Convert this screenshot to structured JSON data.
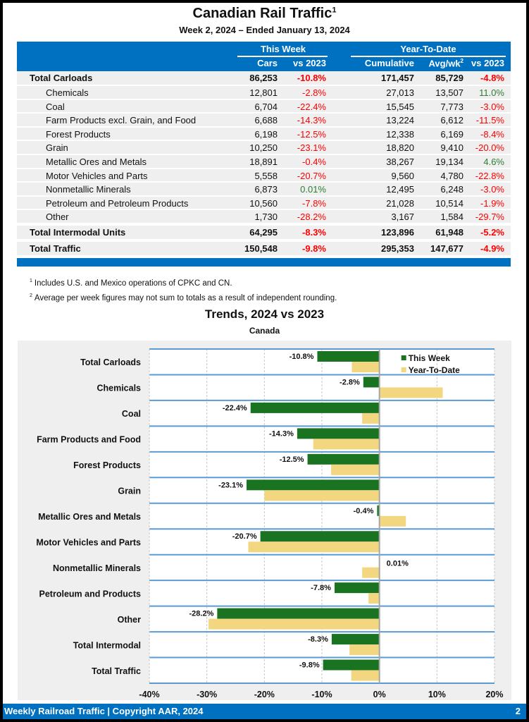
{
  "header": {
    "title": "Canadian Rail Traffic",
    "title_sup": "1",
    "subtitle": "Week 2, 2024 – Ended January 13, 2024"
  },
  "table": {
    "groups": [
      "This Week",
      "Year-To-Date"
    ],
    "columns": [
      "Cars",
      "vs 2023",
      "Cumulative",
      "Avg/wk",
      "vs 2023"
    ],
    "avg_sup": "2",
    "rows": [
      {
        "label": "Total Carloads",
        "type": "total",
        "cars": "86,253",
        "vs_week": "-10.8%",
        "cumulative": "171,457",
        "avg": "85,729",
        "vs_ytd": "-4.8%"
      },
      {
        "label": "Chemicals",
        "type": "sub",
        "cars": "12,801",
        "vs_week": "-2.8%",
        "cumulative": "27,013",
        "avg": "13,507",
        "vs_ytd": "11.0%"
      },
      {
        "label": "Coal",
        "type": "sub",
        "cars": "6,704",
        "vs_week": "-22.4%",
        "cumulative": "15,545",
        "avg": "7,773",
        "vs_ytd": "-3.0%"
      },
      {
        "label": "Farm Products excl. Grain, and Food",
        "type": "sub",
        "cars": "6,688",
        "vs_week": "-14.3%",
        "cumulative": "13,224",
        "avg": "6,612",
        "vs_ytd": "-11.5%"
      },
      {
        "label": "Forest Products",
        "type": "sub",
        "cars": "6,198",
        "vs_week": "-12.5%",
        "cumulative": "12,338",
        "avg": "6,169",
        "vs_ytd": "-8.4%"
      },
      {
        "label": "Grain",
        "type": "sub",
        "cars": "10,250",
        "vs_week": "-23.1%",
        "cumulative": "18,820",
        "avg": "9,410",
        "vs_ytd": "-20.0%"
      },
      {
        "label": "Metallic Ores and Metals",
        "type": "sub",
        "cars": "18,891",
        "vs_week": "-0.4%",
        "cumulative": "38,267",
        "avg": "19,134",
        "vs_ytd": "4.6%"
      },
      {
        "label": "Motor Vehicles and Parts",
        "type": "sub",
        "cars": "5,558",
        "vs_week": "-20.7%",
        "cumulative": "9,560",
        "avg": "4,780",
        "vs_ytd": "-22.8%"
      },
      {
        "label": "Nonmetallic Minerals",
        "type": "sub",
        "cars": "6,873",
        "vs_week": "0.01%",
        "cumulative": "12,495",
        "avg": "6,248",
        "vs_ytd": "-3.0%"
      },
      {
        "label": "Petroleum and Petroleum Products",
        "type": "sub",
        "cars": "10,560",
        "vs_week": "-7.8%",
        "cumulative": "21,028",
        "avg": "10,514",
        "vs_ytd": "-1.9%"
      },
      {
        "label": "Other",
        "type": "sub",
        "cars": "1,730",
        "vs_week": "-28.2%",
        "cumulative": "3,167",
        "avg": "1,584",
        "vs_ytd": "-29.7%"
      },
      {
        "label": "Total Intermodal Units",
        "type": "total",
        "cars": "64,295",
        "vs_week": "-8.3%",
        "cumulative": "123,896",
        "avg": "61,948",
        "vs_ytd": "-5.2%"
      },
      {
        "label": "Total Traffic",
        "type": "total",
        "cars": "150,548",
        "vs_week": "-9.8%",
        "cumulative": "295,353",
        "avg": "147,677",
        "vs_ytd": "-4.9%"
      }
    ]
  },
  "notes": [
    {
      "sup": "1",
      "text": "Includes U.S. and Mexico operations of CPKC and CN."
    },
    {
      "sup": "2",
      "text": "Average per week figures may not sum to totals as a result of independent rounding."
    }
  ],
  "colors": {
    "brand_blue": "#0070c0",
    "negative": "#ff0000",
    "positive": "#2e7d32",
    "this_week_bar": "#1a7321",
    "ytd_bar": "#f2d680"
  },
  "chart_data": {
    "type": "bar",
    "orientation": "horizontal",
    "title": "Trends, 2024 vs 2023",
    "subtitle": "Canada",
    "categories": [
      "Total Carloads",
      "Chemicals",
      "Coal",
      "Farm Products and Food",
      "Forest Products",
      "Grain",
      "Metallic Ores and Metals",
      "Motor Vehicles and Parts",
      "Nonmetallic Minerals",
      "Petroleum and Products",
      "Other",
      "Total Intermodal",
      "Total Traffic"
    ],
    "series": [
      {
        "name": "This Week",
        "values": [
          -10.8,
          -2.8,
          -22.4,
          -14.3,
          -12.5,
          -23.1,
          -0.4,
          -20.7,
          0.01,
          -7.8,
          -28.2,
          -8.3,
          -9.8
        ],
        "labels": [
          "-10.8%",
          "-2.8%",
          "-22.4%",
          "-14.3%",
          "-12.5%",
          "-23.1%",
          "-0.4%",
          "-20.7%",
          "0.01%",
          "-7.8%",
          "-28.2%",
          "-8.3%",
          "-9.8%"
        ]
      },
      {
        "name": "Year-To-Date",
        "values": [
          -4.8,
          11.0,
          -3.0,
          -11.5,
          -8.4,
          -20.0,
          4.6,
          -22.8,
          -3.0,
          -1.9,
          -29.7,
          -5.2,
          -4.9
        ]
      }
    ],
    "xlim": [
      -40,
      20
    ],
    "xticks": [
      "-40%",
      "-30%",
      "-20%",
      "-10%",
      "0%",
      "10%",
      "20%"
    ],
    "xtick_values": [
      -40,
      -30,
      -20,
      -10,
      0,
      10,
      20
    ],
    "grid": true,
    "legend": "top-right"
  },
  "footer": {
    "left": "Weekly Railroad Traffic | Copyright AAR, 2024",
    "page": "2"
  }
}
